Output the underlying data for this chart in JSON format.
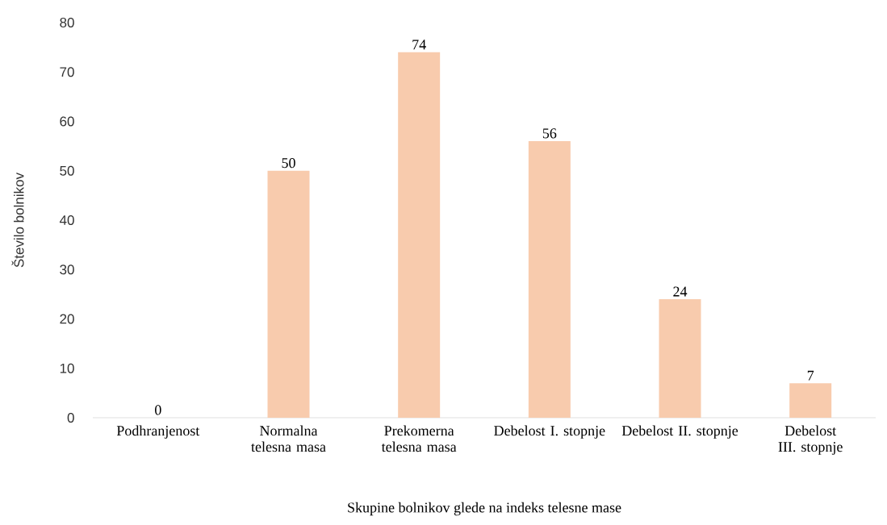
{
  "chart_data": {
    "type": "bar",
    "xlabel": "Skupine bolnikov glede na indeks telesne mase",
    "ylabel": "Število bolnikov",
    "categories": [
      "Podhranjenost",
      "Normalna telesna masa",
      "Prekomerna telesna masa",
      "Debelost I. stopnje",
      "Debelost II. stopnje",
      "Debelost III. stopnje"
    ],
    "values": [
      0,
      50,
      74,
      56,
      24,
      7
    ],
    "color": "#f8cbad",
    "ylim": [
      0,
      80
    ],
    "yticks": [
      0,
      10,
      20,
      30,
      40,
      50,
      60,
      70,
      80
    ],
    "data_labels": true
  }
}
